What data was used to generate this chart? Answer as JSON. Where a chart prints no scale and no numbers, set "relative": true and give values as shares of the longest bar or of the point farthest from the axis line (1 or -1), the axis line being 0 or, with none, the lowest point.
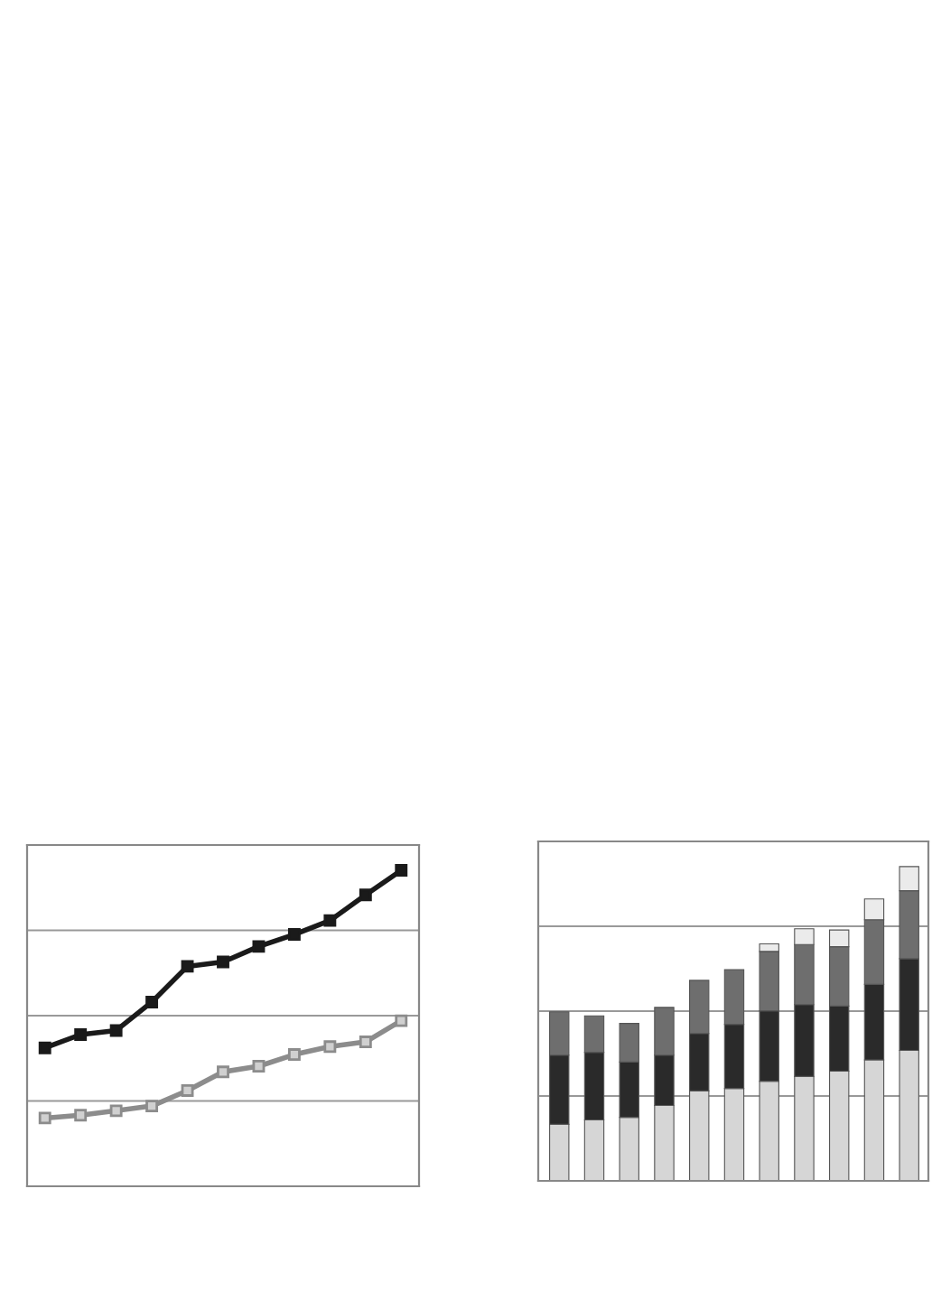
{
  "chart_data": [
    {
      "type": "line",
      "relative": true,
      "grid": "y",
      "marker": "square",
      "line_style": "solid",
      "categories": [
        null,
        null,
        null,
        null,
        null,
        null,
        null,
        null,
        null,
        null,
        null
      ],
      "series": [
        {
          "color": "#1a1a1a",
          "values": [
            0.438,
            0.48,
            0.493,
            0.583,
            0.696,
            0.71,
            0.759,
            0.797,
            0.841,
            0.922,
            1.0
          ]
        },
        {
          "color": "#8c8c8c",
          "values": [
            0.216,
            0.225,
            0.239,
            0.254,
            0.303,
            0.362,
            0.38,
            0.417,
            0.442,
            0.457,
            0.524
          ]
        }
      ]
    },
    {
      "type": "bar",
      "relative": true,
      "stacked": true,
      "grid": "y",
      "categories": [
        null,
        null,
        null,
        null,
        null,
        null,
        null,
        null,
        null,
        null,
        null
      ],
      "series": [
        {
          "color": "#d6d6d6",
          "values": [
            0.18,
            0.194,
            0.202,
            0.24,
            0.286,
            0.294,
            0.317,
            0.332,
            0.349,
            0.385,
            0.415
          ]
        },
        {
          "color": "#2a2a2a",
          "values": [
            0.22,
            0.215,
            0.176,
            0.16,
            0.183,
            0.204,
            0.224,
            0.229,
            0.207,
            0.24,
            0.292
          ]
        },
        {
          "color": "#6e6e6e",
          "values": [
            0.138,
            0.116,
            0.123,
            0.152,
            0.169,
            0.174,
            0.189,
            0.191,
            0.189,
            0.206,
            0.216
          ]
        },
        {
          "color": "#ebebeb",
          "values": [
            null,
            null,
            null,
            null,
            null,
            null,
            0.024,
            0.05,
            0.053,
            0.066,
            0.077
          ]
        }
      ]
    }
  ]
}
